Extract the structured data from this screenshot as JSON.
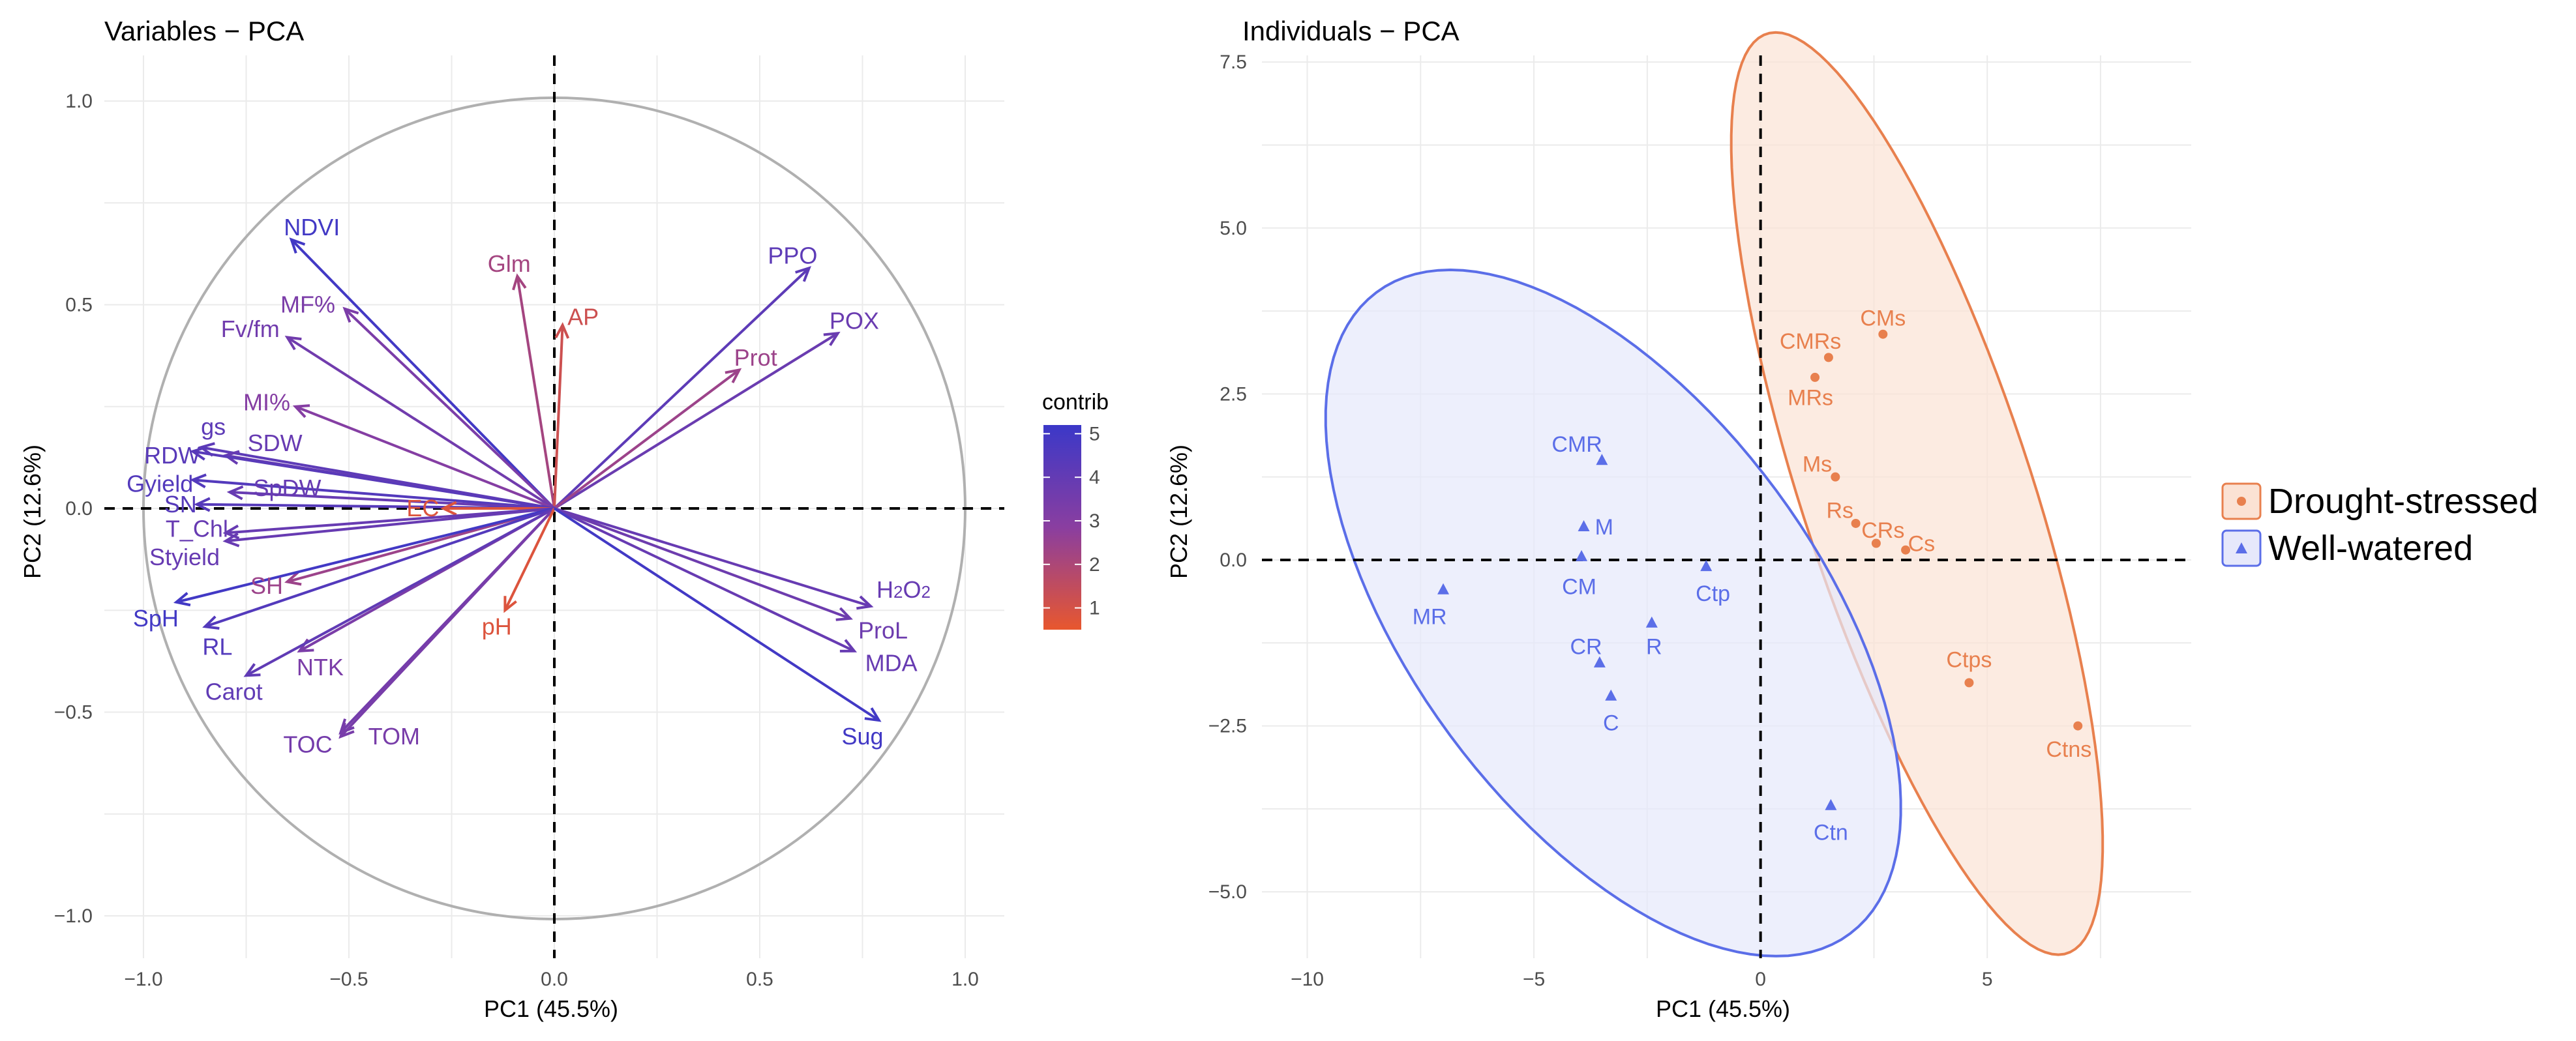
{
  "colors": {
    "drought": "#e8804e",
    "drought_fill": "#fbe2d4",
    "watered": "#5b6ee8",
    "watered_fill": "#e6e8fb",
    "circle": "#b0b0b0",
    "gradient_high": "#3b38c8",
    "gradient_mid": "#8a3ea0",
    "gradient_low": "#e8572e"
  },
  "chart_data": [
    {
      "type": "scatter",
      "subtype": "pca-variables",
      "title": "Variables − PCA",
      "xlabel": "PC1 (45.5%)",
      "ylabel": "PC2 (12.6%)",
      "xlim": [
        -1.0,
        1.0
      ],
      "ylim": [
        -1.0,
        1.0
      ],
      "x_ticks": [
        -1.0,
        -0.5,
        0.0,
        0.5,
        1.0
      ],
      "y_ticks": [
        -1.0,
        -0.5,
        0.0,
        0.5,
        1.0
      ],
      "x_tick_labels": [
        "−1.0",
        "−0.5",
        "0.0",
        "0.5",
        "1.0"
      ],
      "y_tick_labels": [
        "−1.0",
        "−0.5",
        "0.0",
        "0.5",
        "1.0"
      ],
      "correlation_circle": true,
      "legend": {
        "title": "contrib",
        "position": "right",
        "scale_min": 0.5,
        "scale_max": 5.2,
        "ticks": [
          1,
          2,
          3,
          4,
          5
        ],
        "tick_labels": [
          "1",
          "2",
          "3",
          "4",
          "5"
        ]
      },
      "variables": [
        {
          "name": "NDVI",
          "x": -0.64,
          "y": 0.66,
          "contrib": 5.0,
          "lx": -0.59,
          "ly": 0.69
        },
        {
          "name": "Glm",
          "x": -0.09,
          "y": 0.57,
          "contrib": 2.2,
          "lx": -0.11,
          "ly": 0.6
        },
        {
          "name": "AP",
          "x": 0.02,
          "y": 0.45,
          "contrib": 1.2,
          "lx": 0.07,
          "ly": 0.47
        },
        {
          "name": "PPO",
          "x": 0.62,
          "y": 0.59,
          "contrib": 4.2,
          "lx": 0.58,
          "ly": 0.62
        },
        {
          "name": "POX",
          "x": 0.69,
          "y": 0.43,
          "contrib": 3.8,
          "lx": 0.73,
          "ly": 0.46
        },
        {
          "name": "Prot",
          "x": 0.45,
          "y": 0.34,
          "contrib": 2.4,
          "lx": 0.49,
          "ly": 0.37
        },
        {
          "name": "MF%",
          "x": -0.51,
          "y": 0.49,
          "contrib": 3.3,
          "lx": -0.6,
          "ly": 0.5
        },
        {
          "name": "Fv/fm",
          "x": -0.65,
          "y": 0.42,
          "contrib": 3.6,
          "lx": -0.74,
          "ly": 0.44
        },
        {
          "name": "MI%",
          "x": -0.63,
          "y": 0.25,
          "contrib": 3.0,
          "lx": -0.7,
          "ly": 0.26
        },
        {
          "name": "gs",
          "x": -0.86,
          "y": 0.15,
          "contrib": 4.2,
          "lx": -0.83,
          "ly": 0.2
        },
        {
          "name": "SDW",
          "x": -0.8,
          "y": 0.13,
          "contrib": 3.9,
          "lx": -0.68,
          "ly": 0.16
        },
        {
          "name": "RDW",
          "x": -0.88,
          "y": 0.14,
          "contrib": 4.3,
          "lx": -0.93,
          "ly": 0.13
        },
        {
          "name": "Gyield",
          "x": -0.88,
          "y": 0.07,
          "contrib": 4.5,
          "lx": -0.96,
          "ly": 0.06
        },
        {
          "name": "SpDW",
          "x": -0.79,
          "y": 0.04,
          "contrib": 3.9,
          "lx": -0.65,
          "ly": 0.05
        },
        {
          "name": "SN",
          "x": -0.87,
          "y": 0.01,
          "contrib": 4.4,
          "lx": -0.91,
          "ly": 0.01
        },
        {
          "name": "EC",
          "x": -0.27,
          "y": 0.0,
          "contrib": 0.8,
          "lx": -0.32,
          "ly": 0.0
        },
        {
          "name": "T_Chl",
          "x": -0.8,
          "y": -0.06,
          "contrib": 3.9,
          "lx": -0.87,
          "ly": -0.05
        },
        {
          "name": "Styield",
          "x": -0.8,
          "y": -0.08,
          "contrib": 3.9,
          "lx": -0.9,
          "ly": -0.12
        },
        {
          "name": "SH",
          "x": -0.65,
          "y": -0.18,
          "contrib": 2.4,
          "lx": -0.7,
          "ly": -0.19
        },
        {
          "name": "SpH",
          "x": -0.92,
          "y": -0.23,
          "contrib": 5.0,
          "lx": -0.97,
          "ly": -0.27
        },
        {
          "name": "RL",
          "x": -0.85,
          "y": -0.29,
          "contrib": 4.5,
          "lx": -0.82,
          "ly": -0.34
        },
        {
          "name": "NTK",
          "x": -0.62,
          "y": -0.35,
          "contrib": 3.3,
          "lx": -0.57,
          "ly": -0.39
        },
        {
          "name": "Carot",
          "x": -0.75,
          "y": -0.41,
          "contrib": 4.1,
          "lx": -0.78,
          "ly": -0.45
        },
        {
          "name": "TOC",
          "x": -0.52,
          "y": -0.55,
          "contrib": 3.5,
          "lx": -0.6,
          "ly": -0.58
        },
        {
          "name": "TOM",
          "x": -0.52,
          "y": -0.56,
          "contrib": 3.4,
          "lx": -0.39,
          "ly": -0.56
        },
        {
          "name": "pH",
          "x": -0.12,
          "y": -0.25,
          "contrib": 0.8,
          "lx": -0.14,
          "ly": -0.29
        },
        {
          "name": "H2O2",
          "x": 0.77,
          "y": -0.24,
          "contrib": 3.9,
          "lx": 0.85,
          "ly": -0.2
        },
        {
          "name": "ProL",
          "x": 0.72,
          "y": -0.27,
          "contrib": 3.7,
          "lx": 0.8,
          "ly": -0.3
        },
        {
          "name": "MDA",
          "x": 0.73,
          "y": -0.35,
          "contrib": 3.9,
          "lx": 0.82,
          "ly": -0.38
        },
        {
          "name": "Sug",
          "x": 0.79,
          "y": -0.52,
          "contrib": 5.0,
          "lx": 0.75,
          "ly": -0.56
        }
      ]
    },
    {
      "type": "scatter",
      "subtype": "pca-individuals",
      "title": "Individuals − PCA",
      "xlabel": "PC1 (45.5%)",
      "ylabel": "PC2 (12.6%)",
      "xlim": [
        -11.0,
        9.5
      ],
      "ylim": [
        -6.0,
        7.6
      ],
      "x_ticks": [
        -10,
        -5,
        0,
        5
      ],
      "y_ticks": [
        -5.0,
        -2.5,
        0.0,
        2.5,
        5.0,
        7.5
      ],
      "x_tick_labels": [
        "−10",
        "−5",
        "0",
        "5"
      ],
      "y_tick_labels": [
        "−5.0",
        "−2.5",
        "0.0",
        "2.5",
        "5.0",
        "7.5"
      ],
      "legend": {
        "position": "right",
        "entries": [
          {
            "name": "Drought-stressed",
            "marker": "circle"
          },
          {
            "name": "Well-watered",
            "marker": "triangle"
          }
        ]
      },
      "series": [
        {
          "name": "Drought-stressed",
          "marker": "circle",
          "ellipse": {
            "cx": 3.45,
            "cy": 1.0,
            "rx": 7.7,
            "ry": 2.4,
            "angle_deg": -63
          },
          "points": [
            {
              "label": "CMs",
              "x": 2.7,
              "y": 3.4,
              "lx": 2.7,
              "ly": 3.65
            },
            {
              "label": "CMRs",
              "x": 1.5,
              "y": 3.05,
              "lx": 1.1,
              "ly": 3.3
            },
            {
              "label": "MRs",
              "x": 1.2,
              "y": 2.75,
              "lx": 1.1,
              "ly": 2.45
            },
            {
              "label": "Ms",
              "x": 1.65,
              "y": 1.25,
              "lx": 1.25,
              "ly": 1.45
            },
            {
              "label": "Rs",
              "x": 2.1,
              "y": 0.55,
              "lx": 1.75,
              "ly": 0.75
            },
            {
              "label": "CRs",
              "x": 2.55,
              "y": 0.25,
              "lx": 2.7,
              "ly": 0.45
            },
            {
              "label": "Cs",
              "x": 3.2,
              "y": 0.15,
              "lx": 3.55,
              "ly": 0.25
            },
            {
              "label": "Ctps",
              "x": 4.6,
              "y": -1.85,
              "lx": 4.6,
              "ly": -1.5
            },
            {
              "label": "Ctns",
              "x": 7.0,
              "y": -2.5,
              "lx": 6.8,
              "ly": -2.85
            }
          ]
        },
        {
          "name": "Well-watered",
          "marker": "triangle",
          "ellipse": {
            "cx": -3.25,
            "cy": -0.8,
            "rx": 7.3,
            "ry": 3.7,
            "angle_deg": -35
          },
          "points": [
            {
              "label": "CMR",
              "x": -3.5,
              "y": 1.5,
              "lx": -4.05,
              "ly": 1.75
            },
            {
              "label": "M",
              "x": -3.9,
              "y": 0.5,
              "lx": -3.45,
              "ly": 0.5
            },
            {
              "label": "CM",
              "x": -3.95,
              "y": 0.05,
              "lx": -4.0,
              "ly": -0.4
            },
            {
              "label": "MR",
              "x": -7.0,
              "y": -0.45,
              "lx": -7.3,
              "ly": -0.85
            },
            {
              "label": "Ctp",
              "x": -1.2,
              "y": -0.1,
              "lx": -1.05,
              "ly": -0.5
            },
            {
              "label": "CR",
              "x": -3.55,
              "y": -1.55,
              "lx": -3.85,
              "ly": -1.3
            },
            {
              "label": "R",
              "x": -2.4,
              "y": -0.95,
              "lx": -2.35,
              "ly": -1.3
            },
            {
              "label": "C",
              "x": -3.3,
              "y": -2.05,
              "lx": -3.3,
              "ly": -2.45
            },
            {
              "label": "Ctn",
              "x": 1.55,
              "y": -3.7,
              "lx": 1.55,
              "ly": -4.1
            }
          ]
        }
      ]
    }
  ]
}
